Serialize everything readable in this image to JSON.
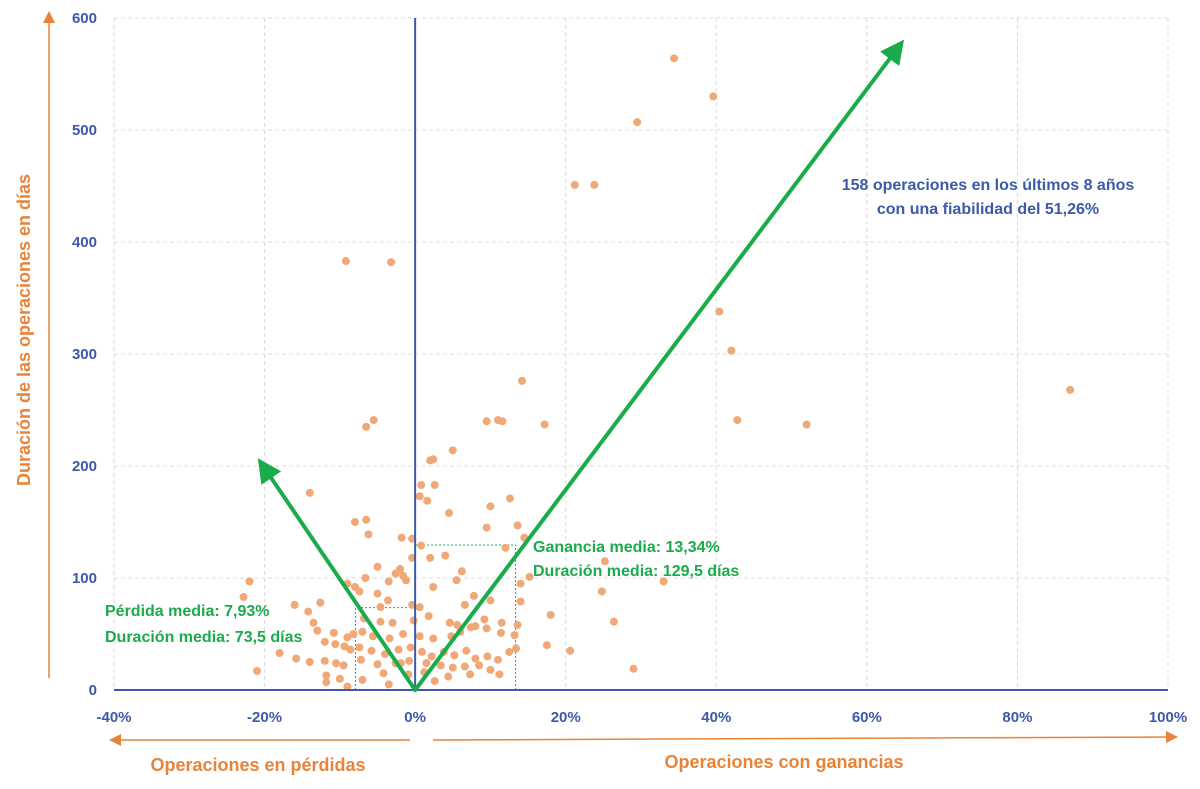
{
  "chart_data": {
    "type": "scatter",
    "title": "",
    "xlabel": "Operaciones con ganancias",
    "xlabel_negative": "Operaciones en pérdidas",
    "ylabel": "Duración de las operaciones en días",
    "xlim": [
      -40,
      100
    ],
    "ylim": [
      0,
      600
    ],
    "x_ticks": [
      -40,
      -20,
      0,
      20,
      40,
      60,
      80,
      100
    ],
    "x_tick_labels": [
      "-40%",
      "-20%",
      "0%",
      "20%",
      "40%",
      "60%",
      "80%",
      "100%"
    ],
    "y_ticks": [
      0,
      100,
      200,
      300,
      400,
      500,
      600
    ],
    "y_tick_labels": [
      "0",
      "100",
      "200",
      "300",
      "400",
      "500",
      "600"
    ],
    "grid": true,
    "colors": {
      "points": "#f0a877",
      "axes": "#3b5aa8",
      "arrows": "#1aab4b",
      "axis_titles": "#e8843a",
      "grid": "#dcdcdc"
    },
    "points": [
      [
        34.4,
        564
      ],
      [
        39.6,
        530
      ],
      [
        29.5,
        507
      ],
      [
        21.2,
        451
      ],
      [
        23.8,
        451
      ],
      [
        -9.2,
        383
      ],
      [
        -3.2,
        382
      ],
      [
        40.4,
        338
      ],
      [
        42.0,
        303
      ],
      [
        14.2,
        276
      ],
      [
        87.0,
        268
      ],
      [
        11.0,
        241
      ],
      [
        9.5,
        240
      ],
      [
        11.6,
        240
      ],
      [
        42.8,
        241
      ],
      [
        17.2,
        237
      ],
      [
        52.0,
        237
      ],
      [
        -5.5,
        241
      ],
      [
        -6.5,
        235
      ],
      [
        2.0,
        205
      ],
      [
        2.4,
        206
      ],
      [
        5.0,
        214
      ],
      [
        -14.0,
        176
      ],
      [
        0.8,
        183
      ],
      [
        2.6,
        183
      ],
      [
        0.6,
        173
      ],
      [
        12.6,
        171
      ],
      [
        1.6,
        169
      ],
      [
        10.0,
        164
      ],
      [
        4.5,
        158
      ],
      [
        -6.5,
        152
      ],
      [
        -8.0,
        150
      ],
      [
        13.6,
        147
      ],
      [
        9.5,
        145
      ],
      [
        -6.2,
        139
      ],
      [
        -1.8,
        136
      ],
      [
        -0.4,
        135
      ],
      [
        0.8,
        129
      ],
      [
        14.5,
        136
      ],
      [
        4.0,
        120
      ],
      [
        -0.4,
        118
      ],
      [
        2.0,
        118
      ],
      [
        12.0,
        127
      ],
      [
        -22.0,
        97
      ],
      [
        -22.8,
        83
      ],
      [
        -5.0,
        110
      ],
      [
        -2.0,
        108
      ],
      [
        -6.6,
        100
      ],
      [
        -3.5,
        97
      ],
      [
        -9.0,
        95
      ],
      [
        -8.0,
        92
      ],
      [
        -2.6,
        104
      ],
      [
        -1.6,
        102
      ],
      [
        -1.2,
        98
      ],
      [
        2.4,
        92
      ],
      [
        5.5,
        98
      ],
      [
        6.2,
        106
      ],
      [
        15.2,
        101
      ],
      [
        14.0,
        95
      ],
      [
        7.8,
        84
      ],
      [
        10.0,
        80
      ],
      [
        33.0,
        97
      ],
      [
        25.2,
        115
      ],
      [
        -7.4,
        88
      ],
      [
        -5.0,
        86
      ],
      [
        -3.6,
        80
      ],
      [
        -4.6,
        74
      ],
      [
        0.6,
        74
      ],
      [
        -0.4,
        76
      ],
      [
        6.6,
        76
      ],
      [
        14.0,
        79
      ],
      [
        -12.6,
        78
      ],
      [
        -16.0,
        76
      ],
      [
        -14.2,
        70
      ],
      [
        -6.8,
        64
      ],
      [
        -4.6,
        61
      ],
      [
        -3.0,
        60
      ],
      [
        -0.2,
        62
      ],
      [
        1.8,
        66
      ],
      [
        4.6,
        60
      ],
      [
        5.6,
        58
      ],
      [
        7.4,
        56
      ],
      [
        9.5,
        55
      ],
      [
        11.4,
        51
      ],
      [
        13.6,
        58
      ],
      [
        18.0,
        67
      ],
      [
        26.4,
        61
      ],
      [
        24.8,
        88
      ],
      [
        -13.5,
        60
      ],
      [
        -13.0,
        53
      ],
      [
        -10.8,
        51
      ],
      [
        -9.0,
        47
      ],
      [
        -8.2,
        50
      ],
      [
        -7.0,
        52
      ],
      [
        -5.6,
        48
      ],
      [
        -3.4,
        46
      ],
      [
        -1.6,
        50
      ],
      [
        0.6,
        48
      ],
      [
        2.4,
        46
      ],
      [
        4.8,
        48
      ],
      [
        6.0,
        52
      ],
      [
        8.0,
        57
      ],
      [
        9.2,
        63
      ],
      [
        11.5,
        60
      ],
      [
        13.2,
        49
      ],
      [
        -12.0,
        43
      ],
      [
        -10.6,
        41
      ],
      [
        -9.4,
        39
      ],
      [
        -8.6,
        36
      ],
      [
        -7.4,
        38
      ],
      [
        -5.8,
        35
      ],
      [
        -4.0,
        32
      ],
      [
        -2.2,
        36
      ],
      [
        -0.6,
        38
      ],
      [
        0.9,
        34
      ],
      [
        2.2,
        30
      ],
      [
        3.8,
        34
      ],
      [
        5.2,
        31
      ],
      [
        6.8,
        35
      ],
      [
        8.0,
        28
      ],
      [
        9.6,
        30
      ],
      [
        11.0,
        27
      ],
      [
        12.5,
        34
      ],
      [
        13.4,
        37
      ],
      [
        17.5,
        40
      ],
      [
        20.6,
        35
      ],
      [
        -18.0,
        33
      ],
      [
        -15.8,
        28
      ],
      [
        -14.0,
        25
      ],
      [
        -12.0,
        26
      ],
      [
        -10.5,
        24
      ],
      [
        -9.5,
        22
      ],
      [
        -7.2,
        27
      ],
      [
        -5.0,
        23
      ],
      [
        -2.6,
        24
      ],
      [
        -0.8,
        26
      ],
      [
        1.5,
        24
      ],
      [
        3.4,
        22
      ],
      [
        5.0,
        20
      ],
      [
        6.6,
        21
      ],
      [
        8.5,
        22
      ],
      [
        10.0,
        18
      ],
      [
        -21.0,
        17
      ],
      [
        -11.8,
        13
      ],
      [
        -10.0,
        10
      ],
      [
        -7.0,
        9
      ],
      [
        -3.5,
        5
      ],
      [
        -0.9,
        14
      ],
      [
        1.2,
        16
      ],
      [
        2.6,
        8
      ],
      [
        4.4,
        12
      ],
      [
        7.3,
        14
      ],
      [
        -9.0,
        3
      ],
      [
        -11.8,
        7
      ],
      [
        29.0,
        19
      ],
      [
        11.2,
        14
      ],
      [
        -4.2,
        15
      ],
      [
        -1.9,
        24
      ]
    ],
    "arrows": [
      {
        "name": "arrow-losses",
        "from": [
          0,
          0
        ],
        "to": [
          -20.3,
          201
        ]
      },
      {
        "name": "arrow-gains",
        "from": [
          0,
          0
        ],
        "to": [
          64.3,
          575
        ]
      }
    ],
    "reference_lines": [
      {
        "name": "avg-loss-marker",
        "x": -7.93,
        "y": 73.5
      },
      {
        "name": "avg-gain-marker",
        "x": 13.34,
        "y": 129.5
      }
    ],
    "annotations": {
      "avg_gain_label": "Ganancia media: 13,34%",
      "avg_gain_duration": "Duración media: 129,5 días",
      "avg_loss_label": "Pérdida media: 7,93%",
      "avg_loss_duration": "Duración media: 73,5 días",
      "summary_line1": "158 operaciones en los últimos 8 años",
      "summary_line2": "con una fiabilidad del 51,26%"
    }
  }
}
